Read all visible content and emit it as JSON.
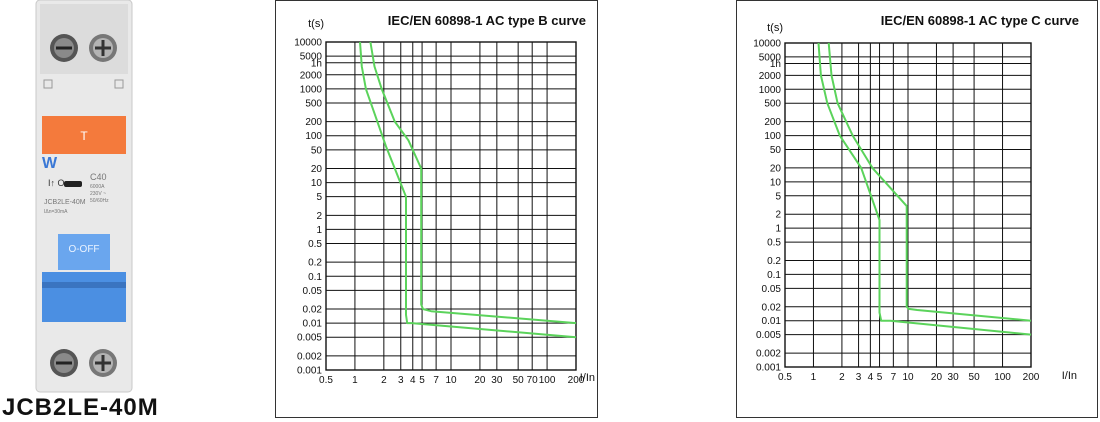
{
  "product": {
    "name": "JCB2LE-40M",
    "label_top": "T",
    "rating": "C40",
    "current_line": "6000A",
    "voltage_line": "230V ~",
    "freq_line": "50/60Hz",
    "model": "JCB2LE-40M",
    "residual": "IΔn=30mA",
    "switch_text": "O-OFF",
    "brand_mark": "W"
  },
  "colors": {
    "curve": "#5bd35b",
    "grid": "#111111",
    "button": "#f47a3c",
    "lever": "#4b8fe2",
    "body": "#e6e6e6"
  },
  "chart_data": [
    {
      "type": "line",
      "title": "IEC/EN 60898-1 AC type B curve",
      "ylabel": "t(s)",
      "xlabel": "I/In",
      "xscale": "log",
      "yscale": "log",
      "xlim": [
        0.5,
        200
      ],
      "ylim": [
        0.001,
        10000
      ],
      "grid": true,
      "x_ticks": [
        0.5,
        1,
        2,
        3,
        4,
        5,
        7,
        10,
        20,
        30,
        50,
        70,
        100,
        200
      ],
      "x_tick_labels": [
        "0.5",
        "1",
        "2",
        "3",
        "4",
        "5",
        "7",
        "10",
        "20",
        "30",
        "50",
        "70",
        "100",
        "200"
      ],
      "y_ticks": [
        10000,
        5000,
        3600,
        2000,
        1000,
        500,
        200,
        100,
        50,
        20,
        10,
        5,
        2,
        1,
        0.5,
        0.2,
        0.1,
        0.05,
        0.02,
        0.01,
        0.005,
        0.002,
        0.001
      ],
      "y_tick_labels": [
        "10000",
        "5000",
        "1h",
        "2000",
        "1000",
        "500",
        "200",
        "100",
        "50",
        "20",
        "10",
        "5",
        "2",
        "1",
        "0.5",
        "0.2",
        "0.1",
        "0.05",
        "0.02",
        "0.01",
        "0.005",
        "0.002",
        "0.001"
      ],
      "series": [
        {
          "x": [
            1.13,
            1.18,
            1.3,
            1.6,
            2.1,
            3.4,
            3.4,
            3.5,
            3.9,
            200
          ],
          "y": [
            10000,
            3000,
            1000,
            300,
            60,
            5,
            0.015,
            0.01,
            0.01,
            0.005
          ]
        },
        {
          "x": [
            1.45,
            1.6,
            1.9,
            2.6,
            3.6,
            4.9,
            4.9,
            5.1,
            6.2,
            200
          ],
          "y": [
            10000,
            3000,
            1000,
            200,
            80,
            20,
            0.025,
            0.02,
            0.018,
            0.01
          ]
        }
      ]
    },
    {
      "type": "line",
      "title": "IEC/EN 60898-1 AC type C curve",
      "ylabel": "t(s)",
      "xlabel": "I/In",
      "xscale": "log",
      "yscale": "log",
      "xlim": [
        0.5,
        200
      ],
      "ylim": [
        0.001,
        10000
      ],
      "grid": true,
      "x_ticks": [
        0.5,
        1,
        2,
        3,
        4,
        5,
        7,
        10,
        20,
        30,
        50,
        100,
        200
      ],
      "x_tick_labels": [
        "0.5",
        "1",
        "2",
        "3",
        "4",
        "5",
        "7",
        "10",
        "20",
        "30",
        "50",
        "100",
        "200"
      ],
      "y_ticks": [
        10000,
        5000,
        3600,
        2000,
        1000,
        500,
        200,
        100,
        50,
        20,
        10,
        5,
        2,
        1,
        0.5,
        0.2,
        0.1,
        0.05,
        0.02,
        0.01,
        0.005,
        0.002,
        0.001
      ],
      "y_tick_labels": [
        "10000",
        "5000",
        "1h",
        "2000",
        "1000",
        "500",
        "200",
        "100",
        "50",
        "20",
        "10",
        "5",
        "2",
        "1",
        "0.5",
        "0.2",
        "0.1",
        "0.05",
        "0.02",
        "0.01",
        "0.005",
        "0.002",
        "0.001"
      ],
      "series": [
        {
          "x": [
            1.13,
            1.2,
            1.4,
            1.9,
            3.2,
            5.0,
            5.0,
            5.2,
            6.5,
            200
          ],
          "y": [
            10000,
            2000,
            500,
            100,
            20,
            1.5,
            0.015,
            0.01,
            0.01,
            0.005
          ]
        },
        {
          "x": [
            1.45,
            1.55,
            1.8,
            2.6,
            4.2,
            9.7,
            9.7,
            10.2,
            12.5,
            200
          ],
          "y": [
            10000,
            2000,
            500,
            100,
            20,
            3,
            0.02,
            0.018,
            0.017,
            0.01
          ]
        }
      ]
    }
  ]
}
